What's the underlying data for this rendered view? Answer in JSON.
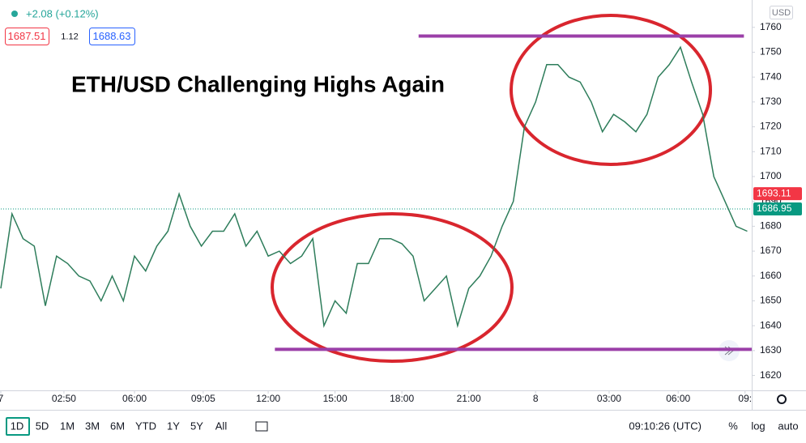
{
  "chart_data": {
    "type": "line",
    "title": "ETH/USD Challenging Highs Again",
    "currency": "USD",
    "x": [
      0,
      0.5,
      1,
      1.5,
      2,
      2.5,
      3,
      3.5,
      4,
      4.5,
      5,
      5.5,
      6,
      6.5,
      7,
      7.5,
      8,
      8.5,
      9,
      9.5,
      10,
      10.5,
      11,
      11.5,
      12,
      12.5,
      13,
      13.5,
      14,
      14.5,
      15,
      15.5,
      16,
      16.5,
      17,
      17.5,
      18,
      18.5,
      19,
      19.5,
      20,
      20.5,
      21,
      21.5,
      22,
      22.5,
      23,
      23.5,
      24,
      24.5,
      25,
      25.5,
      26,
      26.5,
      27,
      27.5,
      28,
      28.5,
      29,
      29.5,
      30,
      30.5,
      31,
      31.5,
      32,
      32.5,
      33,
      33.5
    ],
    "series": [
      {
        "color": "#2e7d5b",
        "values": [
          1655,
          1685,
          1675,
          1672,
          1648,
          1668,
          1665,
          1660,
          1658,
          1650,
          1660,
          1650,
          1668,
          1662,
          1672,
          1678,
          1693,
          1680,
          1672,
          1678,
          1678,
          1685,
          1672,
          1678,
          1668,
          1670,
          1665,
          1668,
          1675,
          1640,
          1650,
          1645,
          1665,
          1665,
          1675,
          1675,
          1673,
          1668,
          1650,
          1655,
          1660,
          1640,
          1655,
          1660,
          1668,
          1680,
          1690,
          1720,
          1730,
          1745,
          1745,
          1740,
          1738,
          1730,
          1718,
          1725,
          1722,
          1718,
          1725,
          1740,
          1745,
          1752,
          1738,
          1725,
          1700,
          1690,
          1680,
          1678
        ]
      }
    ],
    "xlim": [
      0,
      33.7
    ],
    "ylim": [
      1614,
      1771
    ],
    "xticks": [
      {
        "value": 0,
        "label": "7"
      },
      {
        "value": 2.833,
        "label": "02:50"
      },
      {
        "value": 6,
        "label": "06:00"
      },
      {
        "value": 9.083,
        "label": "09:05"
      },
      {
        "value": 12,
        "label": "12:00"
      },
      {
        "value": 15,
        "label": "15:00"
      },
      {
        "value": 18,
        "label": "18:00"
      },
      {
        "value": 21,
        "label": "21:00"
      },
      {
        "value": 24,
        "label": "8"
      },
      {
        "value": 27.3,
        "label": "03:00"
      },
      {
        "value": 30.4,
        "label": "06:00"
      },
      {
        "value": 33.4,
        "label": "09:"
      }
    ],
    "yticks": [
      1620,
      1630,
      1640,
      1650,
      1660,
      1670,
      1680,
      1690,
      1700,
      1710,
      1720,
      1730,
      1740,
      1750,
      1760
    ],
    "grid": false,
    "hlines": [
      {
        "y": 1756.5,
        "x": [
          18.75,
          33.35
        ],
        "color": "#9b3fa8"
      },
      {
        "y": 1630.5,
        "x": [
          12.3,
          33.7
        ],
        "color": "#9b3fa8"
      }
    ],
    "price_labels": [
      {
        "value": 1693.11,
        "color": "#f23645"
      },
      {
        "value": 1686.95,
        "color": "#089981"
      }
    ]
  },
  "legend": {
    "change": "+2.08 (+0.12%)",
    "bid": "1687.51",
    "spread": "1.12",
    "ask": "1688.63"
  },
  "toolbar": {
    "ranges": [
      "1D",
      "5D",
      "1M",
      "3M",
      "6M",
      "YTD",
      "1Y",
      "5Y",
      "All"
    ],
    "time": "09:10:26 (UTC)",
    "options": [
      "%",
      "log",
      "auto"
    ]
  }
}
